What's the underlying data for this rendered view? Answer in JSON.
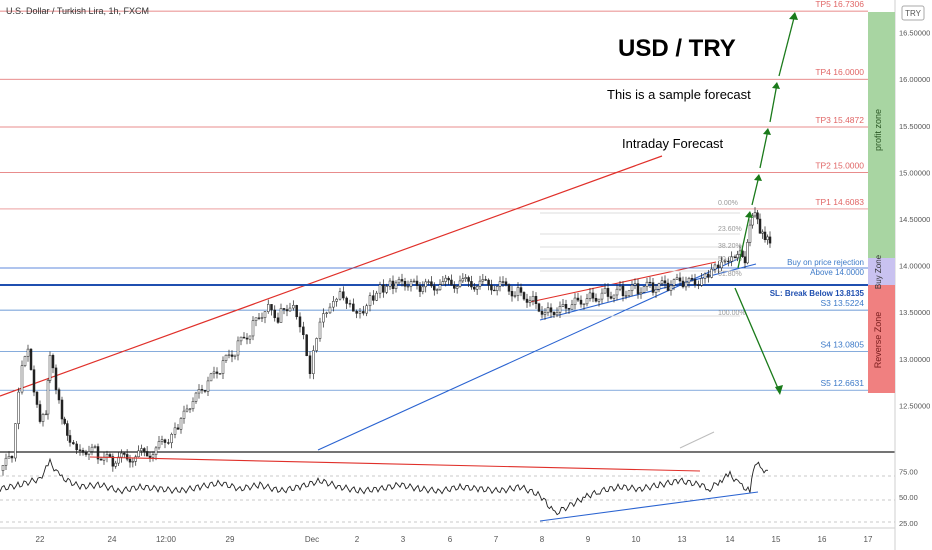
{
  "header": {
    "symbol_title": "U.S. Dollar / Turkish Lira, 1h, FXCM",
    "currency_badge": "TRY"
  },
  "annotations": {
    "main_title": "USD / TRY",
    "subtitle": "This is a sample forecast",
    "intraday": "Intraday Forecast",
    "buy_rejection": "Buy on price rejection",
    "above": "Above 14.0000",
    "stop_loss": "SL: Break Below 13.8135"
  },
  "levels": [
    {
      "label": "TP5 16.7306",
      "value": 16.7306,
      "color": "#e06666"
    },
    {
      "label": "TP4 16.0000",
      "value": 16.0,
      "color": "#e06666"
    },
    {
      "label": "TP3 15.4872",
      "value": 15.4872,
      "color": "#e06666"
    },
    {
      "label": "TP2 15.0000",
      "value": 15.0,
      "color": "#e06666"
    },
    {
      "label": "TP1 14.6083",
      "value": 14.6083,
      "color": "#e06666"
    },
    {
      "label": "S3 13.5224",
      "value": 13.5224,
      "color": "#3d7ac8"
    },
    {
      "label": "S4 13.0805",
      "value": 13.0805,
      "color": "#3d7ac8"
    },
    {
      "label": "S5 12.6631",
      "value": 12.6631,
      "color": "#3d7ac8"
    }
  ],
  "fib_labels": [
    "0.00%",
    "23.60%",
    "38.20%",
    "50.00%",
    "61.80%",
    "100.00%"
  ],
  "zones": {
    "profit": "profit zone",
    "buy": "Buy Zone",
    "reverse": "Reverse Zone"
  },
  "colors": {
    "profit": "#a8d5a2",
    "buy": "#c9c2f0",
    "reverse": "#f08080",
    "bull": "#222222",
    "bear": "#222222",
    "arrow": "#1a7a1a"
  },
  "chart_data": {
    "type": "candlestick",
    "y_ticks": [
      "16.50000",
      "16.00000",
      "15.50000",
      "15.00000",
      "14.50000",
      "14.00000",
      "13.50000",
      "13.00000",
      "12.50000"
    ],
    "ylim": [
      12.0,
      16.85
    ],
    "x_ticks": [
      "22",
      "24",
      "12:00",
      "29",
      "Dec",
      "2",
      "3",
      "6",
      "7",
      "8",
      "9",
      "10",
      "13",
      "14",
      "15",
      "16",
      "17"
    ],
    "indicator": {
      "name": "RSI",
      "ticks": [
        "75.00",
        "50.00",
        "25.00"
      ],
      "ylim": [
        20,
        90
      ]
    },
    "prices": [
      [
        0.0,
        11.8
      ],
      [
        0.012,
        11.95
      ],
      [
        0.022,
        12.9
      ],
      [
        0.028,
        13.05
      ],
      [
        0.034,
        12.6
      ],
      [
        0.04,
        12.3
      ],
      [
        0.046,
        12.4
      ],
      [
        0.05,
        13.05
      ],
      [
        0.056,
        12.7
      ],
      [
        0.062,
        12.4
      ],
      [
        0.07,
        12.15
      ],
      [
        0.08,
        12.05
      ],
      [
        0.095,
        12.0
      ],
      [
        0.11,
        11.9
      ],
      [
        0.13,
        11.95
      ],
      [
        0.15,
        12.0
      ],
      [
        0.165,
        12.1
      ],
      [
        0.175,
        12.2
      ],
      [
        0.19,
        12.5
      ],
      [
        0.205,
        12.7
      ],
      [
        0.22,
        12.9
      ],
      [
        0.235,
        13.1
      ],
      [
        0.25,
        13.3
      ],
      [
        0.265,
        13.55
      ],
      [
        0.278,
        13.45
      ],
      [
        0.29,
        13.6
      ],
      [
        0.3,
        13.4
      ],
      [
        0.31,
        12.9
      ],
      [
        0.32,
        13.45
      ],
      [
        0.33,
        13.6
      ],
      [
        0.34,
        13.75
      ],
      [
        0.35,
        13.6
      ],
      [
        0.36,
        13.5
      ],
      [
        0.37,
        13.65
      ],
      [
        0.38,
        13.75
      ],
      [
        0.39,
        13.78
      ],
      [
        0.405,
        13.8
      ],
      [
        0.42,
        13.76
      ],
      [
        0.44,
        13.8
      ],
      [
        0.46,
        13.82
      ],
      [
        0.48,
        13.8
      ],
      [
        0.5,
        13.78
      ],
      [
        0.515,
        13.72
      ],
      [
        0.53,
        13.65
      ],
      [
        0.545,
        13.5
      ],
      [
        0.56,
        13.55
      ],
      [
        0.575,
        13.62
      ],
      [
        0.59,
        13.66
      ],
      [
        0.605,
        13.7
      ],
      [
        0.62,
        13.72
      ],
      [
        0.635,
        13.75
      ],
      [
        0.65,
        13.77
      ],
      [
        0.665,
        13.78
      ],
      [
        0.68,
        13.82
      ],
      [
        0.695,
        13.8
      ],
      [
        0.705,
        13.85
      ],
      [
        0.715,
        13.95
      ],
      [
        0.725,
        14.0
      ],
      [
        0.735,
        14.05
      ],
      [
        0.74,
        14.1
      ],
      [
        0.745,
        13.98
      ],
      [
        0.75,
        14.4
      ],
      [
        0.755,
        14.55
      ],
      [
        0.76,
        14.35
      ],
      [
        0.765,
        14.3
      ],
      [
        0.77,
        14.28
      ]
    ],
    "rsi": [
      [
        0.0,
        58
      ],
      [
        0.02,
        62
      ],
      [
        0.04,
        68
      ],
      [
        0.05,
        84
      ],
      [
        0.06,
        70
      ],
      [
        0.08,
        60
      ],
      [
        0.1,
        62
      ],
      [
        0.12,
        56
      ],
      [
        0.14,
        60
      ],
      [
        0.16,
        58
      ],
      [
        0.18,
        56
      ],
      [
        0.2,
        60
      ],
      [
        0.22,
        64
      ],
      [
        0.24,
        58
      ],
      [
        0.26,
        62
      ],
      [
        0.28,
        56
      ],
      [
        0.3,
        60
      ],
      [
        0.32,
        66
      ],
      [
        0.34,
        60
      ],
      [
        0.36,
        56
      ],
      [
        0.38,
        58
      ],
      [
        0.4,
        62
      ],
      [
        0.42,
        58
      ],
      [
        0.44,
        56
      ],
      [
        0.46,
        60
      ],
      [
        0.48,
        58
      ],
      [
        0.5,
        56
      ],
      [
        0.52,
        60
      ],
      [
        0.54,
        52
      ],
      [
        0.555,
        34
      ],
      [
        0.57,
        42
      ],
      [
        0.585,
        50
      ],
      [
        0.6,
        56
      ],
      [
        0.62,
        60
      ],
      [
        0.64,
        58
      ],
      [
        0.66,
        62
      ],
      [
        0.68,
        66
      ],
      [
        0.7,
        62
      ],
      [
        0.71,
        58
      ],
      [
        0.72,
        66
      ],
      [
        0.73,
        72
      ],
      [
        0.74,
        62
      ],
      [
        0.75,
        56
      ],
      [
        0.755,
        84
      ],
      [
        0.762,
        78
      ],
      [
        0.77,
        72
      ]
    ]
  }
}
